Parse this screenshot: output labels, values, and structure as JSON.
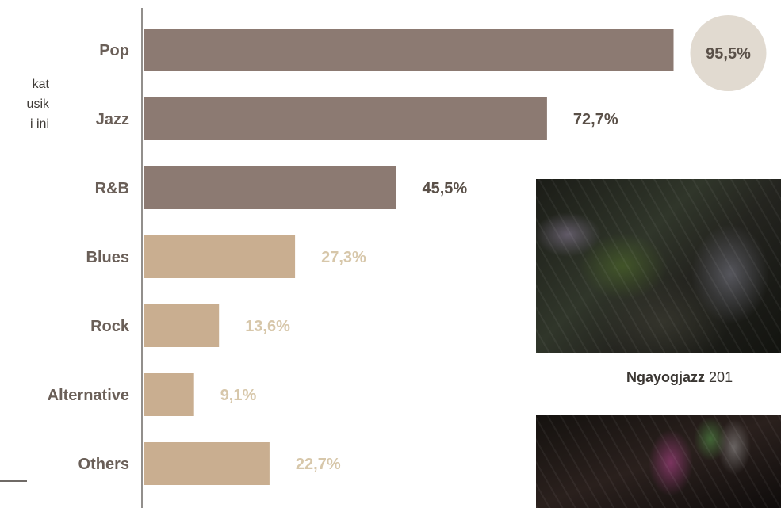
{
  "intro_lines": [
    "kat",
    "usik",
    "i ini"
  ],
  "caption": {
    "title": "Ngayogjazz",
    "year": "201"
  },
  "colors": {
    "dark_bar": "#8c7a72",
    "light_bar": "#c9ae90",
    "dark_label": "#5a5048",
    "light_label": "#d7c7aa",
    "highlight_circle": "#e1dad0",
    "axis_line": "#6f6a66",
    "category_text": "#6a5f58"
  },
  "chart_data": {
    "type": "bar",
    "orientation": "horizontal",
    "categories": [
      "Pop",
      "Jazz",
      "R&B",
      "Blues",
      "Rock",
      "Alternative",
      "Others"
    ],
    "values": [
      95.5,
      72.7,
      45.5,
      27.3,
      13.6,
      9.1,
      22.7
    ],
    "value_labels": [
      "95,5%",
      "72,7%",
      "45,5%",
      "27,3%",
      "13,6%",
      "9,1%",
      "22,7%"
    ],
    "bar_tone": [
      "dark",
      "dark",
      "dark",
      "light",
      "light",
      "light",
      "light"
    ],
    "highlight_index": 0,
    "title": "",
    "xlabel": "",
    "ylabel": "",
    "xlim": [
      0,
      100
    ],
    "grid": false,
    "legend": "none"
  }
}
